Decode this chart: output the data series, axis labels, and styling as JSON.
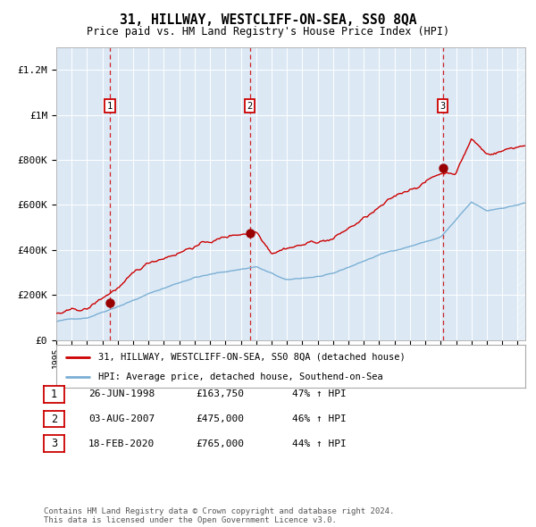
{
  "title": "31, HILLWAY, WESTCLIFF-ON-SEA, SS0 8QA",
  "subtitle": "Price paid vs. HM Land Registry's House Price Index (HPI)",
  "red_line_label": "31, HILLWAY, WESTCLIFF-ON-SEA, SS0 8QA (detached house)",
  "blue_line_label": "HPI: Average price, detached house, Southend-on-Sea",
  "transactions": [
    {
      "num": 1,
      "date": "26-JUN-1998",
      "price": 163750,
      "year": 1998.49,
      "hpi_pct": "47% ↑ HPI"
    },
    {
      "num": 2,
      "date": "03-AUG-2007",
      "price": 475000,
      "year": 2007.58,
      "hpi_pct": "46% ↑ HPI"
    },
    {
      "num": 3,
      "date": "18-FEB-2020",
      "price": 765000,
      "year": 2020.13,
      "hpi_pct": "44% ↑ HPI"
    }
  ],
  "ylim": [
    0,
    1300000
  ],
  "xlim_start": 1995.0,
  "xlim_end": 2025.5,
  "background_color": "#dce9f5",
  "red_color": "#cc0000",
  "blue_color": "#7bafd4",
  "footer": "Contains HM Land Registry data © Crown copyright and database right 2024.\nThis data is licensed under the Open Government Licence v3.0.",
  "yticks": [
    0,
    200000,
    400000,
    600000,
    800000,
    1000000,
    1200000
  ],
  "ytick_labels": [
    "£0",
    "£200K",
    "£400K",
    "£600K",
    "£800K",
    "£1M",
    "£1.2M"
  ]
}
